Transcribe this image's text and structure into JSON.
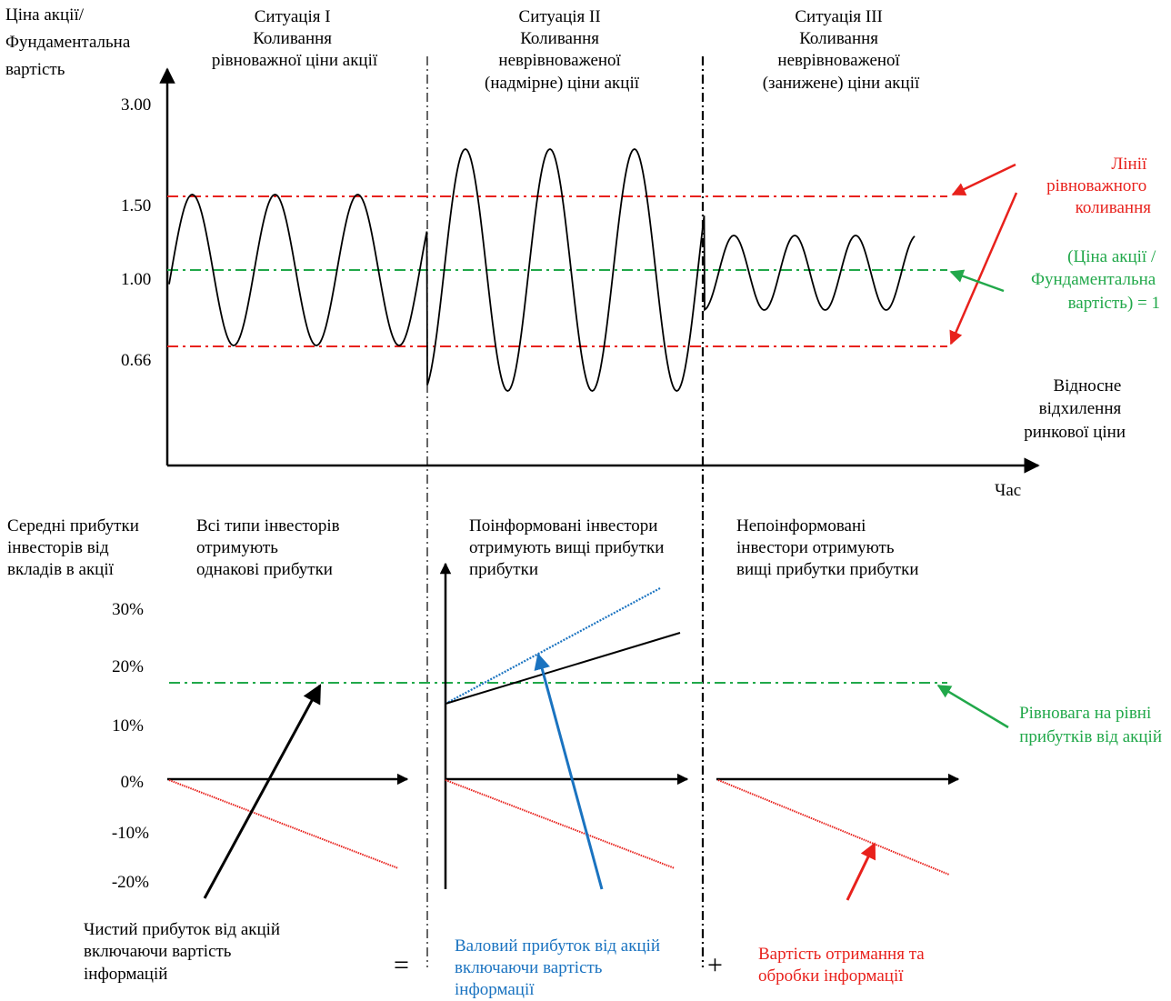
{
  "colors": {
    "red": "#e8211c",
    "green": "#21a84a",
    "blue": "#1a73c0",
    "black": "#000000"
  },
  "top_chart": {
    "y_axis_label": [
      "Ціна акції/",
      "Фундаментальна",
      "вартість"
    ],
    "y_ticks": [
      "3.00",
      "1.50",
      "1.00",
      "0.66"
    ],
    "x_axis_label": "Час",
    "deviation_label": [
      "Відносне",
      "відхилення",
      "ринкової ціни"
    ],
    "situations": [
      {
        "lines": [
          "Ситуація I",
          "Коливання",
          "рівноважної ціни акції"
        ]
      },
      {
        "lines": [
          "Ситуація II",
          "Коливання",
          "неврівноваженої",
          "(надмірне) ціни акції"
        ]
      },
      {
        "lines": [
          "Ситуація III",
          "Коливання",
          "неврівноваженої",
          "(занижене) ціни акції"
        ]
      }
    ],
    "equilibrium_lines_label": [
      "Лінії",
      "рівноважного",
      "коливання"
    ],
    "ratio_label": [
      "(Ціна акції /",
      "Фундаментальна",
      "вартість) = 1"
    ]
  },
  "bottom_chart": {
    "y_axis_label": [
      "Середні прибутки",
      "інвесторів від",
      "вкладів в акції"
    ],
    "y_ticks": [
      "30%",
      "20%",
      "10%",
      "0%",
      "-10%",
      "-20%"
    ],
    "panels": [
      {
        "lines": [
          "Всі типи інвесторів",
          "отримують",
          "однакові прибутки"
        ]
      },
      {
        "lines": [
          "Поінформовані інвестори",
          "отримують вищі прибутки",
          "прибутки"
        ]
      },
      {
        "lines": [
          "Непоінформовані",
          "інвестори  отримують",
          "вищі прибутки прибутки"
        ]
      }
    ],
    "equilibrium_label": [
      "Рівновага на рівні",
      "прибутків від акцій"
    ]
  },
  "equation": {
    "net": [
      "Чистий прибуток від акцій",
      "включаючи вартість",
      "інформацій"
    ],
    "equals": "=",
    "gross": [
      "Валовий прибуток від акцій",
      "включаючи вартість",
      "інформації"
    ],
    "plus": "+",
    "cost": [
      "Вартість отримання та",
      "обробки інформації"
    ]
  }
}
